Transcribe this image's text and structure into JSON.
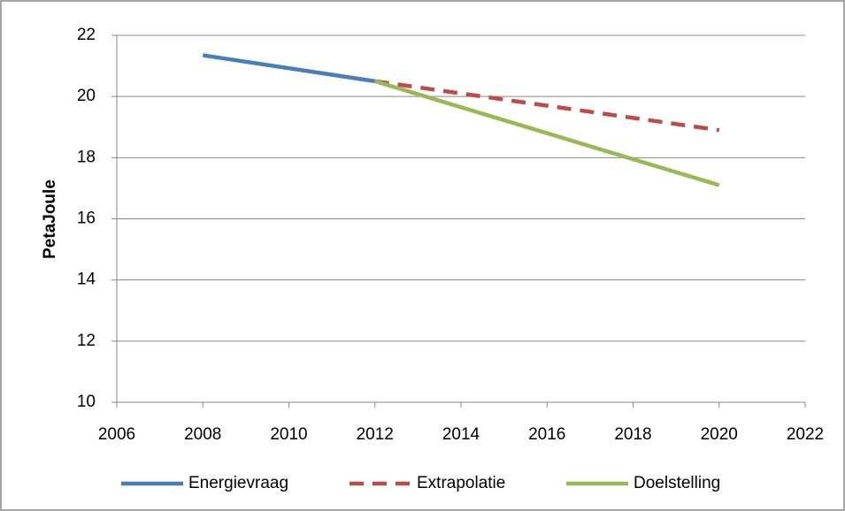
{
  "chart_data": {
    "type": "line",
    "y_label": "PetaJoule",
    "xlim": [
      2006,
      2022
    ],
    "xticks": [
      2006,
      2008,
      2010,
      2012,
      2014,
      2016,
      2018,
      2020,
      2022
    ],
    "ylim": [
      10,
      22
    ],
    "yticks": [
      10,
      12,
      14,
      16,
      18,
      20,
      22
    ],
    "grid": true,
    "legend": "bottom",
    "series": [
      {
        "name": "Energievraag",
        "color": "#4a7ebb",
        "dashed": false,
        "x": [
          2008,
          2012
        ],
        "values": [
          21.35,
          20.5
        ]
      },
      {
        "name": "Extrapolatie",
        "color": "#be4b48",
        "dashed": true,
        "x": [
          2012,
          2020
        ],
        "values": [
          20.5,
          18.9
        ]
      },
      {
        "name": "Doelstelling",
        "color": "#98b954",
        "dashed": false,
        "x": [
          2012,
          2020
        ],
        "values": [
          20.5,
          17.1
        ]
      }
    ]
  }
}
